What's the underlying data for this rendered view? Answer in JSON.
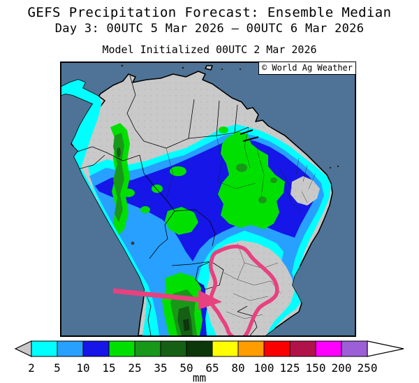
{
  "header": {
    "title": "GEFS Precipitation Forecast: Ensemble Median",
    "subtitle": "Day 3: 00UTC 5 Mar 2026 – 00UTC 6 Mar 2026",
    "initialized": "Model Initialized 00UTC 2 Mar 2026"
  },
  "map": {
    "credit": "© World Ag Weather",
    "region": "South America",
    "ocean_color": "#4e7396",
    "land_color": "#c9c9c9",
    "border_color": "#000000",
    "annotation_color": "#e8417f",
    "annotation_note": "pink arrow and outline highlighting dry (<2 mm) area over south-central Brazil"
  },
  "colorbar": {
    "units": "mm",
    "tick_labels": [
      "2",
      "5",
      "10",
      "15",
      "25",
      "35",
      "50",
      "65",
      "80",
      "100",
      "125",
      "150",
      "200",
      "250"
    ],
    "segment_colors": [
      "#00ffff",
      "#28a0ff",
      "#1616e8",
      "#00e000",
      "#189818",
      "#156015",
      "#0b370b",
      "#ffff00",
      "#ff9c00",
      "#fa0000",
      "#b2124a",
      "#ff00ff",
      "#9c5fd6"
    ],
    "below_min_color": "#c8c8c8",
    "above_max_color": "#ffffff"
  }
}
